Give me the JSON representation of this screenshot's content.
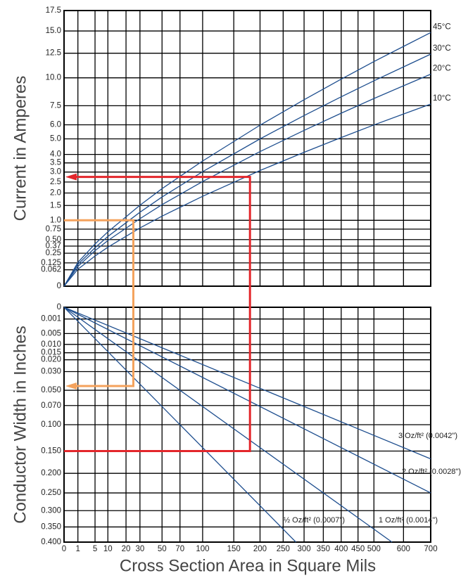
{
  "chart_data": [
    {
      "type": "line",
      "ylabel": "Current in Amperes",
      "yscale": "sqrt",
      "xscale": "sqrt",
      "grid": true,
      "xlim": [
        0,
        700
      ],
      "ylim": [
        0,
        17.5
      ],
      "yticks": [
        17.5,
        {
          "value": 15,
          "label": "15.0"
        },
        12.5,
        {
          "value": 10,
          "label": "10.0"
        },
        7.5,
        {
          "value": 6,
          "label": "6.0"
        },
        {
          "value": 5,
          "label": "5.0"
        },
        {
          "value": 4,
          "label": "4.0"
        },
        3.5,
        {
          "value": 3,
          "label": "3.0"
        },
        2.5,
        {
          "value": 2,
          "label": "2.0"
        },
        1.5,
        {
          "value": 1,
          "label": "1.0"
        },
        0.75,
        {
          "value": 0.5,
          "label": "0.50"
        },
        0.37,
        0.25,
        0.125,
        0.062,
        0
      ],
      "x": [
        0,
        1,
        5,
        10,
        30,
        50,
        100,
        200,
        300,
        400,
        500,
        600,
        700
      ],
      "series": [
        {
          "name": "45°C",
          "color": "#1f4f8f",
          "values": [
            0,
            0.13,
            0.41,
            0.68,
            1.51,
            2.19,
            3.61,
            5.97,
            8.01,
            9.87,
            11.62,
            13.24,
            14.82
          ]
        },
        {
          "name": "30°C",
          "color": "#1f4f8f",
          "values": [
            0,
            0.11,
            0.34,
            0.57,
            1.26,
            1.83,
            3.02,
            5.0,
            6.71,
            8.26,
            9.72,
            11.08,
            12.4
          ]
        },
        {
          "name": "20°C",
          "color": "#1f4f8f",
          "values": [
            0,
            0.09,
            0.29,
            0.48,
            1.05,
            1.53,
            2.52,
            4.17,
            5.59,
            6.89,
            8.11,
            9.25,
            10.35
          ]
        },
        {
          "name": "10°C",
          "color": "#1f4f8f",
          "values": [
            0,
            0.066,
            0.21,
            0.35,
            0.78,
            1.13,
            1.86,
            3.08,
            4.13,
            5.09,
            5.99,
            6.83,
            7.64
          ]
        }
      ]
    },
    {
      "type": "line",
      "ylabel": "Conductor Width in Inches",
      "xlabel": "Cross Section Area in Square Mils",
      "yscale": "sqrt",
      "xscale": "sqrt",
      "grid": true,
      "yinverted": true,
      "xlim": [
        0,
        700
      ],
      "ylim": [
        0,
        0.4
      ],
      "xticks": [
        0,
        1,
        5,
        10,
        20,
        30,
        50,
        70,
        100,
        150,
        200,
        250,
        300,
        350,
        400,
        450,
        500,
        600,
        700
      ],
      "yticks": [
        0,
        0.001,
        0.005,
        {
          "value": 0.01,
          "label": "0.010"
        },
        0.015,
        {
          "value": 0.02,
          "label": "0.020"
        },
        {
          "value": 0.03,
          "label": "0.030"
        },
        {
          "value": 0.05,
          "label": "0.050"
        },
        {
          "value": 0.07,
          "label": "0.070"
        },
        {
          "value": 0.1,
          "label": "0.100"
        },
        {
          "value": 0.15,
          "label": "0.150"
        },
        {
          "value": 0.2,
          "label": "0.200"
        },
        {
          "value": 0.25,
          "label": "0.250"
        },
        {
          "value": 0.3,
          "label": "0.300"
        },
        {
          "value": 0.35,
          "label": "0.350"
        },
        {
          "value": 0.4,
          "label": "0.400"
        }
      ],
      "series": [
        {
          "name": "3 Oz/ft² (0.0042\")",
          "color": "#1f4f8f",
          "x": [
            0,
            700
          ],
          "values": [
            0,
            0.1667
          ]
        },
        {
          "name": "2 Oz/ft² (0.0028\")",
          "color": "#1f4f8f",
          "x": [
            0,
            700
          ],
          "values": [
            0,
            0.25
          ]
        },
        {
          "name": "1 Oz/ft² (0.0014\")",
          "color": "#1f4f8f",
          "x": [
            0,
            560
          ],
          "values": [
            0,
            0.4
          ]
        },
        {
          "name": "½ Oz/ft² (0.0007\")",
          "color": "#1f4f8f",
          "x": [
            0,
            280
          ],
          "values": [
            0,
            0.4
          ]
        }
      ]
    }
  ],
  "guides": [
    {
      "color": "#e3262b",
      "x": 180,
      "current": 2.75,
      "width": 0.15,
      "arrow_on": "current"
    },
    {
      "color": "#f4a25c",
      "x": 25,
      "current": 1.0,
      "width": 0.045,
      "arrow_on": "width"
    }
  ]
}
